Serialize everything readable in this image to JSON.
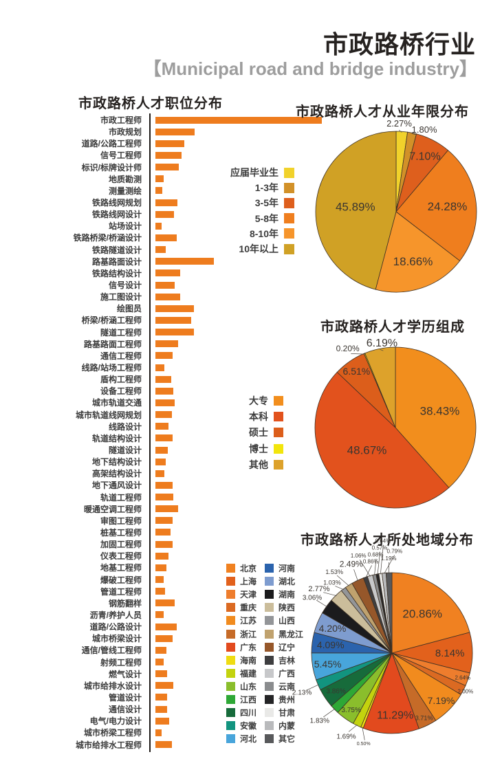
{
  "header": {
    "title": "市政路桥行业",
    "subtitle": "【Municipal road and bridge industry】"
  },
  "chart_data": [
    {
      "type": "bar",
      "orientation": "horizontal",
      "title": "市政路桥人才职位分布",
      "xlabel": "",
      "ylabel": "",
      "axis_labels_shown": false,
      "bar_color": "#EE7C1E",
      "unit": "relative bar length (px), no numeric axis shown",
      "max_value": 242,
      "categories": [
        "市政工程师",
        "市政规划",
        "道路/公路工程师",
        "信号工程师",
        "标识/标牌设计师",
        "地质勘测",
        "测量测绘",
        "铁路线网规划",
        "铁路线网设计",
        "站场设计",
        "铁路桥梁/桥涵设计",
        "铁路隧道设计",
        "路基路面设计",
        "铁路结构设计",
        "信号设计",
        "施工图设计",
        "绘图员",
        "桥梁/桥涵工程师",
        "隧道工程师",
        "路基路面工程师",
        "通信工程师",
        "线路/站场工程师",
        "盾构工程师",
        "设备工程师",
        "城市轨道交通",
        "城市轨道线网规划",
        "线路设计",
        "轨道结构设计",
        "隧道设计",
        "地下结构设计",
        "高架结构设计",
        "地下通风设计",
        "轨道工程师",
        "暖通空调工程师",
        "审图工程师",
        "桩基工程师",
        "加固工程师",
        "仪表工程师",
        "地基工程师",
        "爆破工程师",
        "管道工程师",
        "钢筋翻样",
        "沥青/养护人员",
        "道路/公路设计",
        "城市桥梁设计",
        "通信/管线工程师",
        "射频工程师",
        "燃气设计",
        "城市给排水设计",
        "管道设计",
        "通信设计",
        "电气/电力设计",
        "城市桥梁工程师",
        "城市给排水工程师"
      ],
      "values": [
        242,
        57,
        42,
        38,
        34,
        12,
        10,
        32,
        27,
        9,
        31,
        15,
        85,
        36,
        28,
        36,
        56,
        52,
        56,
        33,
        25,
        13,
        23,
        26,
        28,
        24,
        19,
        25,
        18,
        15,
        13,
        25,
        26,
        33,
        25,
        22,
        25,
        19,
        16,
        12,
        14,
        28,
        12,
        31,
        25,
        16,
        12,
        17,
        26,
        17,
        17,
        20,
        9,
        24
      ]
    },
    {
      "type": "pie",
      "title": "市政路桥人才从业年限分布",
      "legend_position": "left",
      "start_angle_deg": 0,
      "direction": "clockwise",
      "slices": [
        {
          "label": "应届毕业生",
          "pct": 2.27,
          "color": "#F1D22B",
          "lr": 1.1,
          "la": 2,
          "fs": 13
        },
        {
          "label": "1-3年",
          "pct": 1.8,
          "color": "#D29128",
          "lr": 1.08,
          "la": 19,
          "fs": 13
        },
        {
          "label": "3-5年",
          "pct": 7.1,
          "color": "#DE5F1D",
          "lr": 0.78,
          "fs": 16
        },
        {
          "label": "5-8年",
          "pct": 24.28,
          "color": "#EF7E1E",
          "lr": 0.64,
          "fs": 17
        },
        {
          "label": "8-10年",
          "pct": 18.66,
          "color": "#F6952B",
          "lr": 0.65,
          "fs": 17
        },
        {
          "label": "10年以上",
          "pct": 45.89,
          "color": "#D0A125",
          "lr": 0.51,
          "fs": 17
        }
      ]
    },
    {
      "type": "pie",
      "title": "市政路桥人才学历组成",
      "legend_position": "left",
      "start_angle_deg": 0,
      "direction": "clockwise",
      "slices": [
        {
          "label": "大专",
          "pct": 38.43,
          "color": "#F28E1D",
          "lr": 0.59,
          "fs": 17
        },
        {
          "label": "本科",
          "pct": 48.67,
          "color": "#E2521D",
          "lr": 0.45,
          "la": 232,
          "fs": 17
        },
        {
          "label": "硕士",
          "pct": 6.51,
          "color": "#DC5E1B",
          "lr": 0.85,
          "fs": 14
        },
        {
          "label": "博士",
          "pct": 0.2,
          "color": "#F2E50C",
          "lr": 1.15,
          "la": 329,
          "fs": 12
        },
        {
          "label": "其他",
          "pct": 6.19,
          "color": "#DDA22B",
          "lr": 1.07,
          "la": 351,
          "fs": 16
        }
      ]
    },
    {
      "type": "pie",
      "title": "市政路桥人才所处地域分布",
      "legend_position": "left-two-columns",
      "start_angle_deg": 0,
      "direction": "clockwise",
      "slices": [
        {
          "label": "北京",
          "pct": 20.86,
          "color": "#F08121",
          "lr": 0.62,
          "fs": 17
        },
        {
          "label": "上海",
          "pct": 8.14,
          "color": "#E2611C",
          "lr": 0.72,
          "fs": 15
        },
        {
          "label": "天津",
          "pct": 2.64,
          "color": "#EE7D2D",
          "lr": 0.93,
          "fs": 8
        },
        {
          "label": "重庆",
          "pct": 2.0,
          "color": "#DB6A22",
          "lr": 1.03,
          "fs": 8
        },
        {
          "label": "江苏",
          "pct": 7.19,
          "color": "#F18B1E",
          "lr": 0.85,
          "fs": 14
        },
        {
          "label": "浙江",
          "pct": 3.71,
          "color": "#C66B28",
          "lr": 0.9,
          "fs": 9
        },
        {
          "label": "广东",
          "pct": 11.29,
          "color": "#E24A1E",
          "lr": 0.77,
          "la": 177,
          "fs": 16
        },
        {
          "label": "海南",
          "pct": 0.5,
          "color": "#EFDC12",
          "lr": 1.18,
          "la": 197.4,
          "fs": 7
        },
        {
          "label": "福建",
          "pct": 1.69,
          "color": "#C3D30E",
          "lr": 1.18,
          "la": 208.8,
          "fs": 10
        },
        {
          "label": "山东",
          "pct": 3.75,
          "color": "#8ABE2C",
          "lr": 0.87,
          "fs": 10
        },
        {
          "label": "江西",
          "pct": 1.83,
          "color": "#2EA836",
          "lr": 1.23,
          "la": 227,
          "fs": 10
        },
        {
          "label": "四川",
          "pct": 3.86,
          "color": "#176B3B",
          "lr": 0.84,
          "fs": 10
        },
        {
          "label": "安徽",
          "pct": 2.13,
          "color": "#12947F",
          "lr": 1.22,
          "la": 246.5,
          "fs": 10
        },
        {
          "label": "河北",
          "pct": 5.45,
          "color": "#48A5DB",
          "lr": 0.81,
          "fs": 14
        },
        {
          "label": "河南",
          "pct": 4.09,
          "color": "#2B63AD",
          "lr": 0.77,
          "fs": 14
        },
        {
          "label": "湖北",
          "pct": 4.2,
          "color": "#7E9CCF",
          "lr": 0.8,
          "fs": 14
        },
        {
          "label": "湖南",
          "pct": 3.06,
          "color": "#1B1B1D",
          "lr": 1.21,
          "la": 305,
          "fs": 10
        },
        {
          "label": "陕西",
          "pct": 2.77,
          "color": "#CBBD9B",
          "lr": 1.21,
          "la": 311.5,
          "fs": 11
        },
        {
          "label": "山西",
          "pct": 1.03,
          "color": "#939598",
          "lr": 1.15,
          "la": 319.7,
          "fs": 9
        },
        {
          "label": "黑龙江",
          "pct": 1.53,
          "color": "#C0A26E",
          "lr": 1.24,
          "la": 324.7,
          "fs": 9
        },
        {
          "label": "辽宁",
          "pct": 2.49,
          "color": "#96572A",
          "lr": 1.22,
          "la": 335.5,
          "fs": 12
        },
        {
          "label": "吉林",
          "pct": 0.86,
          "color": "#3E3E40",
          "lr": 1.17,
          "la": 347,
          "fs": 8
        },
        {
          "label": "广西",
          "pct": 1.06,
          "color": "#C7C8CA",
          "lr": 1.28,
          "la": 341,
          "fs": 8
        },
        {
          "label": "云南",
          "pct": 0.68,
          "color": "#8A8C8E",
          "lr": 1.24,
          "la": 350.5,
          "fs": 8
        },
        {
          "label": "贵州",
          "pct": 0.57,
          "color": "#242426",
          "lr": 1.32,
          "la": 353.3,
          "fs": 8
        },
        {
          "label": "甘肃",
          "pct": 0.64,
          "color": "#E9E9E7",
          "lr": 1.4,
          "la": 355.4,
          "fs": 8
        },
        {
          "label": "内蒙",
          "pct": 0.79,
          "color": "#B9BABC",
          "lr": 1.27,
          "la": 1.5,
          "fs": 8
        },
        {
          "label": "其它",
          "pct": 1.19,
          "color": "#58595B",
          "lr": 1.18,
          "la": 358,
          "fs": 8
        }
      ]
    }
  ]
}
